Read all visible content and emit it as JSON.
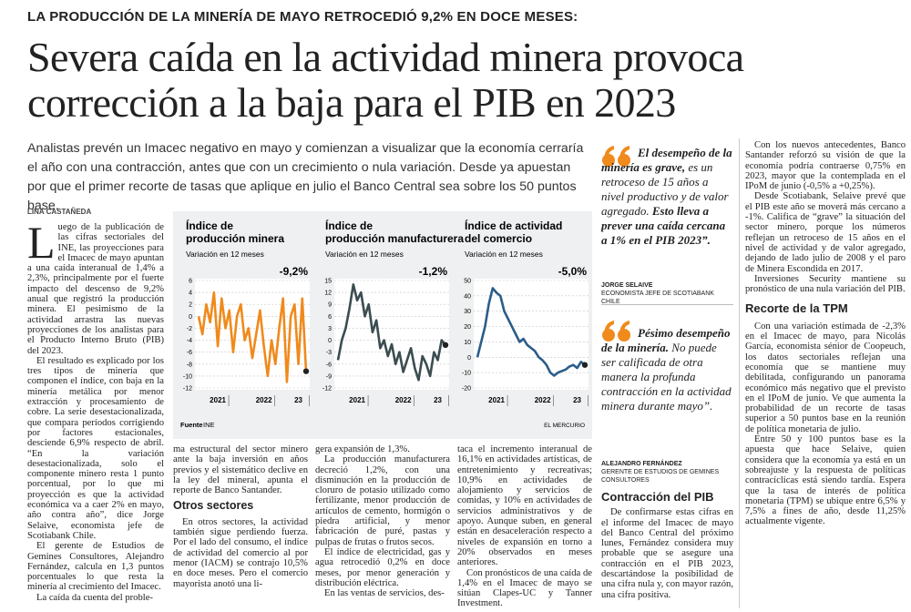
{
  "kicker": "LA PRODUCCIÓN DE LA MINERÍA DE MAYO RETROCEDIÓ 9,2% EN DOCE MESES:",
  "headline": "Severa caída en la actividad minera provoca corrección a la baja para el PIB en 2023",
  "lead": "Analistas prevén un Imacec negativo en mayo y comienzan a visualizar que la economía cerraría el año con una contracción, antes que con un crecimiento o nula variación. Desde ya apuestan por que el primer recorte de tasas que aplique en julio el Banco Central sea sobre los 50 puntos base.",
  "byline": "LINA CASTAÑEDA",
  "columns": [
    [
      "Luego de la publicación de las cifras sectoriales del INE, las proyecciones para el Imacec de mayo apuntan a una caída interanual de 1,4% a 2,3%, principalmente por el fuerte impacto del descenso de 9,2% anual que registró la producción minera. El pesimismo de la actividad arrastra las nuevas proyecciones de los analistas para el Producto Interno Bruto (PIB) del 2023.",
      "El resultado es explicado por los tres tipos de minería que componen el índice, con baja en la minería metálica por menor extracción y procesamiento de cobre. La serie desestacionalizada, que compara períodos corrigiendo por factores estacionales, desciende 6,9% respecto de abril. “En la variación desestacionalizada, solo el componente minero resta 1 punto porcentual, por lo que mi proyección es que la actividad económica va a caer 2% en mayo, año contra año”, dice Jorge Selaive, economista jefe de Scotiabank Chile.",
      "El gerente de Estudios de Gemines Consultores, Alejandro Fernández, calcula en 1,3 puntos porcentuales lo que resta la minería al crecimiento del Imacec.",
      "La caída da cuenta del proble-"
    ],
    [
      "ma estructural del sector minero ante la baja inversión en años previos y el sistemático declive en la ley del mineral, apunta el reporte de Banco Santander.",
      "Otros sectores",
      "En otros sectores, la actividad también sigue perdiendo fuerza. Por el lado del consumo, el índice de actividad del comercio al por menor (IACM) se contrajo 10,5% en doce meses. Pero el comercio mayorista anotó una li-"
    ],
    [
      "gera expansión de 1,3%.",
      "La producción manufacturera decreció 1,2%, con una disminución en la producción de cloruro de potasio utilizado como fertilizante, menor producción de artículos de cemento, hormigón o piedra artificial, y menor fabricación de puré, pastas y pulpas de frutas o frutos secos.",
      "El índice de electricidad, gas y agua retrocedió 0,2% en doce meses, por menor generación y distribución eléctrica.",
      "En las ventas de servicios, des-"
    ],
    [
      "taca el incremento interanual de 16,1% en actividades artísticas, de entretenimiento y recreativas; 10,9% en actividades de alojamiento y servicios de comidas, y 10% en actividades de servicios administrativos y de apoyo. Aunque suben, en general están en desaceleración respecto a niveles de expansión en torno a 20% observados en meses anteriores.",
      "Con pronósticos de una caída de 1,4% en el Imacec de mayo se sitúan Clapes-UC y Tanner Investment."
    ]
  ],
  "quotes": [
    {
      "parts": [
        "El desempeño de la minería es grave,",
        "es un retroceso de 15 años a nivel productivo y de valor agregado.",
        "Esto lleva a prever una caída cercana a 1% en el PIB 2023”."
      ],
      "name": "JORGE SELAIVE",
      "role": "ECONOMISTA JEFE DE SCOTIABANK CHILE"
    },
    {
      "parts": [
        "Pésimo desempeño de la minería.",
        "No puede ser calificada de otra manera la profunda contracción en la actividad minera durante mayo”."
      ],
      "name": "ALEJANDRO FERNÁNDEZ",
      "role": "GERENTE DE ESTUDIOS DE GEMINES CONSULTORES"
    }
  ],
  "section_pib": {
    "heading": "Contracción del PIB",
    "text": "De confirmarse estas cifras en el informe del Imacec de mayo del Banco Central del próximo lunes, Fernández considera muy probable que se asegure una contracción en el PIB 2023, descartándose la posibilidad de una cifra nula y, con mayor razón, una cifra positiva."
  },
  "right_column": [
    "Con los nuevos antecedentes, Banco Santander reforzó su visión de que la economía podría contraerse 0,75% en 2023, mayor que la contemplada en el IPoM de junio (-0,5% a +0,25%).",
    "Desde Scotiabank, Selaive prevé que el PIB este año se moverá más cercano a -1%. Califica de “grave” la situación del sector minero, porque los números reflejan un retroceso de 15 años en el nivel de actividad y de valor agregado, dejando de lado julio de 2008 y el paro de Minera Escondida en 2017.",
    "Inversiones Security mantiene su pronóstico de una nula variación del PIB.",
    "Recorte de la TPM",
    "Con una variación estimada de -2,3% en el Imacec de mayo, para Nicolás García, economista sénior de Coopeuch, los datos sectoriales reflejan una economía que se mantiene muy debilitada, configurando un panorama económico más negativo que el previsto en el IPoM de junio. Ve que aumenta la probabilidad de un recorte de tasas superior a 50 puntos base en la reunión de política monetaria de julio.",
    "Entre 50 y 100 puntos base es la apuesta que hace Selaive, quien considera que la economía ya está en un sobreajuste y la respuesta de políticas contracíclicas está siendo tardía. Espera que la tasa de interés de política monetaria (TPM) se ubique entre 6,5% y 7,5% a fines de año, desde 11,25% actualmente vigente."
  ],
  "chart_source": "Fuente",
  "chart_source_name": "INE",
  "chart_credit": "EL MERCURIO",
  "chart_data": [
    {
      "type": "line",
      "title": "Índice de producción minera",
      "subtitle": "Variación en 12 meses",
      "annotation": "-9,2%",
      "color": "#f08a1c",
      "categories": [
        null,
        null,
        null,
        null,
        null,
        "2021",
        null,
        null,
        null,
        null,
        null,
        null,
        null,
        null,
        null,
        null,
        null,
        "2022",
        null,
        null,
        null,
        null,
        null,
        null,
        null,
        null,
        "23",
        null,
        null
      ],
      "values": [
        0,
        -3,
        2,
        -1,
        4,
        -5,
        3,
        -2,
        1,
        -6,
        0,
        2,
        -4,
        -2,
        -7,
        -3,
        1,
        -5,
        -10,
        -4,
        -8,
        -2,
        3,
        -11,
        0,
        2,
        -8,
        3,
        -9.2
      ],
      "ylim": [
        -12,
        6
      ],
      "yticks": [
        6,
        4,
        2,
        0,
        -2,
        -4,
        -6,
        -8,
        -10,
        -12
      ],
      "grid": true
    },
    {
      "type": "line",
      "title": "Índice de producción manufacturera",
      "subtitle": "Variación en 12 meses",
      "annotation": "-1,2%",
      "color": "#3b4d50",
      "categories": [
        null,
        null,
        null,
        null,
        null,
        "2021",
        null,
        null,
        null,
        null,
        null,
        null,
        null,
        null,
        null,
        null,
        null,
        "2022",
        null,
        null,
        null,
        null,
        null,
        null,
        null,
        null,
        "23",
        null,
        null
      ],
      "values": [
        -5,
        0,
        3,
        8,
        14,
        10,
        12,
        6,
        9,
        2,
        5,
        -2,
        0,
        -4,
        -1,
        -6,
        -3,
        -8,
        -5,
        -2,
        -7,
        -10,
        -4,
        -6,
        -9,
        -3,
        -5,
        0,
        -1.2
      ],
      "ylim": [
        -12,
        15
      ],
      "yticks": [
        15,
        12,
        9,
        6,
        3,
        0,
        -3,
        -6,
        -9,
        -12
      ],
      "grid": true
    },
    {
      "type": "line",
      "title": "Índice de actividad del comercio",
      "subtitle": "Variación en 12 meses",
      "annotation": "-5,0%",
      "color": "#2a5d8a",
      "categories": [
        null,
        null,
        null,
        null,
        null,
        "2021",
        null,
        null,
        null,
        null,
        null,
        null,
        null,
        null,
        null,
        null,
        null,
        "2022",
        null,
        null,
        null,
        null,
        null,
        null,
        null,
        null,
        "23",
        null,
        null
      ],
      "values": [
        0,
        10,
        20,
        35,
        45,
        42,
        40,
        30,
        25,
        20,
        15,
        10,
        12,
        8,
        6,
        4,
        0,
        -2,
        -5,
        -10,
        -12,
        -10,
        -9,
        -8,
        -6,
        -5,
        -7,
        -3,
        -5.0
      ],
      "ylim": [
        -20,
        50
      ],
      "yticks": [
        50,
        40,
        30,
        20,
        10,
        0,
        -10,
        -20
      ],
      "grid": true
    }
  ]
}
